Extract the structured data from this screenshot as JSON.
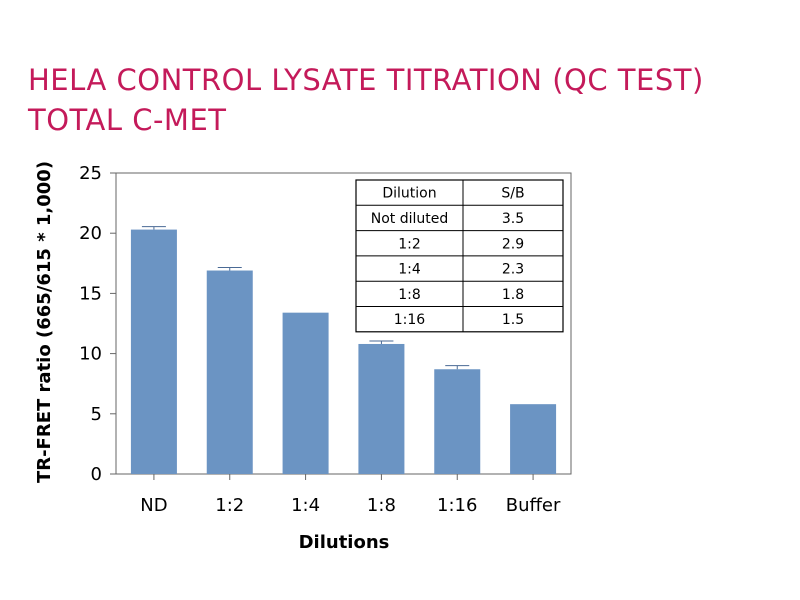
{
  "title_line1": "HELA CONTROL LYSATE TITRATION (QC TEST)",
  "title_line2": "TOTAL C-MET",
  "colors": {
    "title": "#c41a5a",
    "bar": "#6b94c3",
    "errorbar": "#4a6a95"
  },
  "chart_data": {
    "type": "bar",
    "categories": [
      "ND",
      "1:2",
      "1:4",
      "1:8",
      "1:16",
      "Buffer"
    ],
    "values": [
      20.3,
      16.9,
      13.4,
      10.8,
      8.7,
      5.8
    ],
    "errors": [
      0.25,
      0.25,
      0,
      0.25,
      0.3,
      0
    ],
    "xlabel": "Dilutions",
    "ylabel": "TR-FRET ratio (665/615 * 1,000)",
    "ylim": [
      0,
      25
    ],
    "yticks": [
      0,
      5,
      10,
      15,
      20,
      25
    ],
    "grid": false,
    "inset_table": {
      "headers": [
        "Dilution",
        "S/B"
      ],
      "rows": [
        [
          "Not diluted",
          "3.5"
        ],
        [
          "1:2",
          "2.9"
        ],
        [
          "1:4",
          "2.3"
        ],
        [
          "1:8",
          "1.8"
        ],
        [
          "1:16",
          "1.5"
        ]
      ]
    }
  }
}
